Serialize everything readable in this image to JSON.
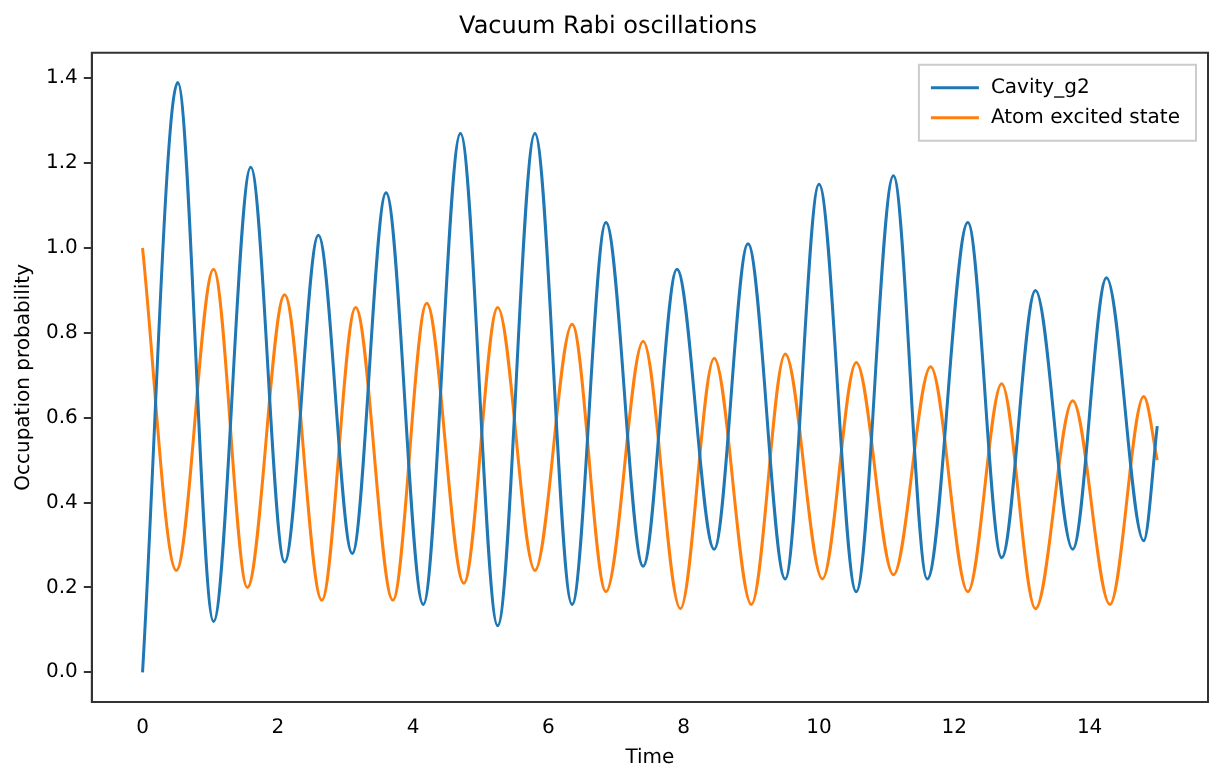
{
  "chart_data": {
    "type": "line",
    "title": "Vacuum Rabi oscillations",
    "xlabel": "Time",
    "ylabel": "Occupation probability",
    "legend": "top right",
    "grid": false,
    "marker": "none",
    "line_style": "solid",
    "xlim": [
      -0.75,
      15.75
    ],
    "ylim": [
      -0.07,
      1.46
    ],
    "xticks": [
      0,
      2,
      4,
      6,
      8,
      10,
      12,
      14
    ],
    "yticks": [
      {
        "value": 0,
        "label": "0.0"
      },
      0.2,
      0.4,
      0.6,
      0.8,
      {
        "value": 1,
        "label": "1.0"
      },
      1.2,
      1.4
    ],
    "series": [
      {
        "name": "Cavity_g2",
        "color": "#1f77b4",
        "x": [
          0,
          0.52,
          1.05,
          1.6,
          2.1,
          2.6,
          3.1,
          3.6,
          4.15,
          4.7,
          5.25,
          5.8,
          6.35,
          6.85,
          7.4,
          7.9,
          8.45,
          8.95,
          9.5,
          10.0,
          10.55,
          11.1,
          11.6,
          12.2,
          12.7,
          13.2,
          13.75,
          14.25,
          14.8,
          15
        ],
        "values": [
          0.0,
          1.39,
          0.12,
          1.19,
          0.26,
          1.03,
          0.28,
          1.13,
          0.16,
          1.27,
          0.11,
          1.27,
          0.16,
          1.06,
          0.25,
          0.95,
          0.29,
          1.01,
          0.22,
          1.15,
          0.19,
          1.17,
          0.22,
          1.06,
          0.27,
          0.9,
          0.29,
          0.93,
          0.31,
          0.58
        ]
      },
      {
        "name": "Atom excited state",
        "color": "#ff7f0e",
        "x": [
          0,
          0.5,
          1.05,
          1.55,
          2.1,
          2.65,
          3.15,
          3.7,
          4.2,
          4.75,
          5.25,
          5.8,
          6.35,
          6.85,
          7.4,
          7.95,
          8.45,
          9.0,
          9.5,
          10.05,
          10.55,
          11.1,
          11.65,
          12.2,
          12.7,
          13.2,
          13.75,
          14.3,
          14.8,
          15
        ],
        "values": [
          1.0,
          0.24,
          0.95,
          0.2,
          0.89,
          0.17,
          0.86,
          0.17,
          0.87,
          0.21,
          0.86,
          0.24,
          0.82,
          0.19,
          0.78,
          0.15,
          0.74,
          0.16,
          0.75,
          0.22,
          0.73,
          0.23,
          0.72,
          0.19,
          0.68,
          0.15,
          0.64,
          0.16,
          0.65,
          0.5
        ]
      }
    ]
  }
}
